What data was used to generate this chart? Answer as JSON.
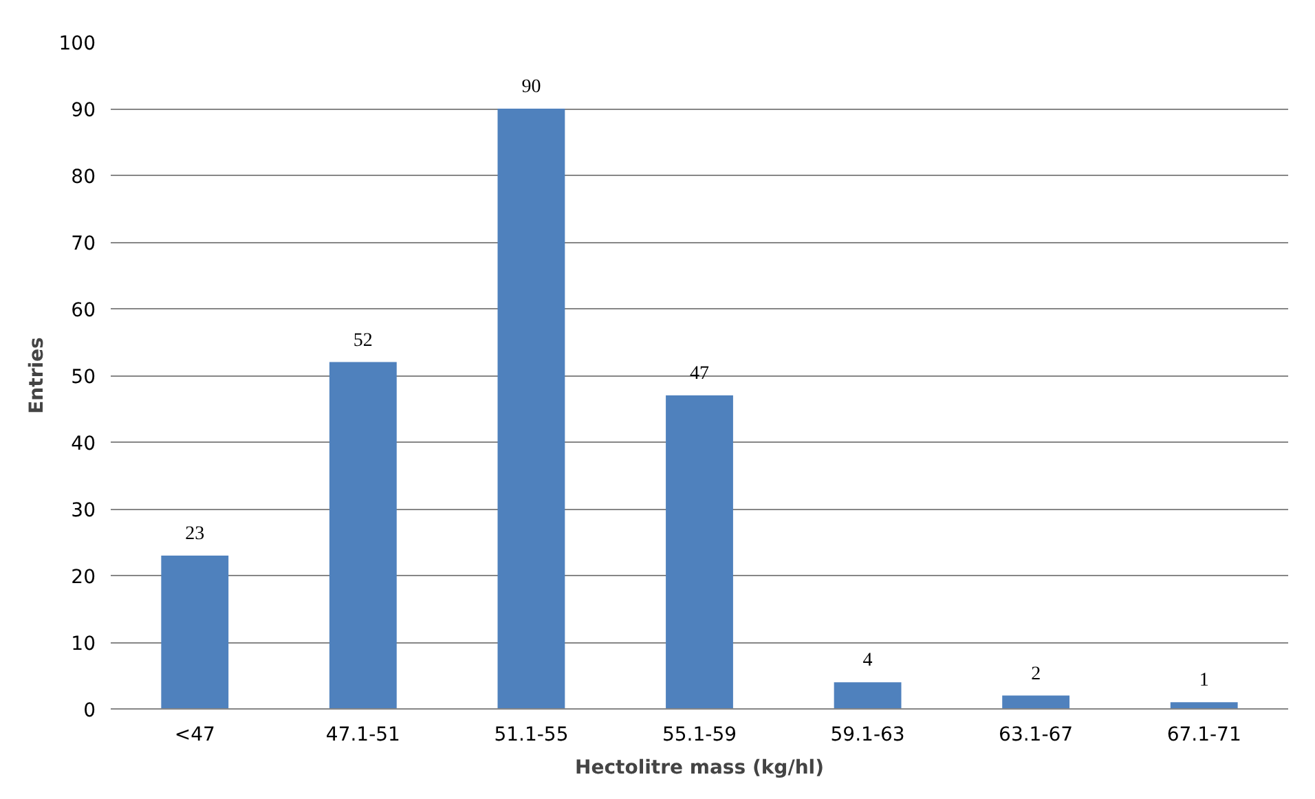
{
  "chart_data": {
    "type": "bar",
    "xlabel": "Hectolitre mass (kg/hl)",
    "ylabel": "Entries",
    "categories": [
      "<47",
      "47.1-51",
      "51.1-55",
      "55.1-59",
      "59.1-63",
      "63.1-67",
      "67.1-71"
    ],
    "values": [
      23,
      52,
      90,
      47,
      4,
      2,
      1
    ],
    "color": "#4f81bd",
    "ylim": [
      0,
      100
    ],
    "yticks": [
      0,
      10,
      20,
      30,
      40,
      50,
      60,
      70,
      80,
      90,
      100
    ],
    "grid": "y",
    "data_labels": true
  }
}
